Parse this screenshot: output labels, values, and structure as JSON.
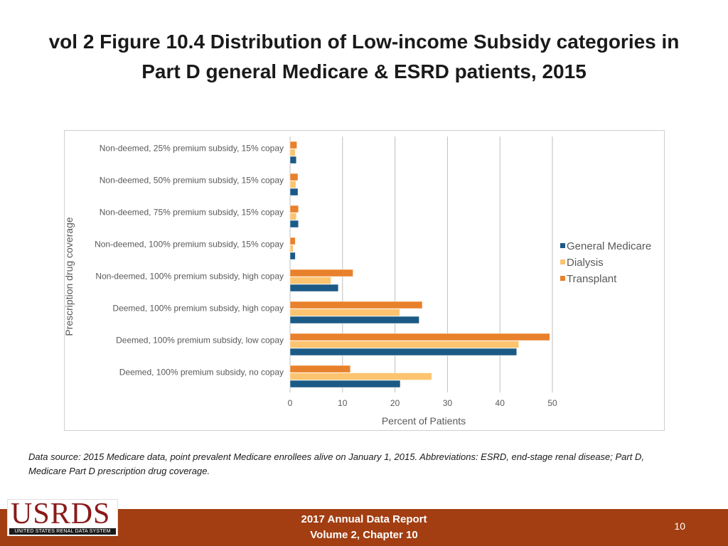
{
  "slide": {
    "title_line1": "vol 2 Figure 10.4 Distribution of Low-income Subsidy categories in",
    "title_line2": "Part D general Medicare & ESRD patients, 2015",
    "footnote": "Data source: 2015 Medicare data, point prevalent Medicare enrollees alive on January 1, 2015. Abbreviations: ESRD, end-stage renal disease; Part D, Medicare Part D prescription drug coverage."
  },
  "footer": {
    "report_line1": "2017 Annual Data Report",
    "report_line2": "Volume 2, Chapter 10",
    "page_number": "10",
    "logo_text": "USRDS",
    "logo_subtext": "UNITED STATES RENAL DATA SYSTEM",
    "bar_color": "#a23e12",
    "logo_color": "#8a1a1a"
  },
  "chart_data": {
    "type": "bar",
    "orientation": "horizontal",
    "title": "",
    "xlabel": "Percent of Patients",
    "ylabel": "Prescription drug coverage",
    "xlim": [
      0,
      50
    ],
    "xticks": [
      0,
      10,
      20,
      30,
      40,
      50
    ],
    "grid": "vertical",
    "legend_position": "right",
    "categories": [
      "Non-deemed, 25% premium subsidy, 15% copay",
      "Non-deemed, 50% premium subsidy, 15% copay",
      "Non-deemed, 75% premium subsidy, 15% copay",
      "Non-deemed, 100% premium subsidy, 15% copay",
      "Non-deemed, 100% premium subsidy, high copay",
      "Deemed, 100% premium subsidy, high copay",
      "Deemed, 100% premium subsidy, low copay",
      "Deemed, 100% premium subsidy, no copay"
    ],
    "series": [
      {
        "name": "Transplant",
        "color": "#e8812c",
        "values": [
          1.3,
          1.5,
          1.6,
          1.0,
          12.0,
          25.2,
          49.5,
          11.5
        ]
      },
      {
        "name": "Dialysis",
        "color": "#fcc470",
        "values": [
          1.0,
          1.1,
          1.2,
          0.6,
          7.8,
          20.9,
          43.6,
          27.0
        ]
      },
      {
        "name": "General Medicare",
        "color": "#1c5a86",
        "values": [
          1.2,
          1.5,
          1.6,
          1.0,
          9.2,
          24.6,
          43.2,
          21.0
        ]
      }
    ],
    "legend_order": [
      "General Medicare",
      "Dialysis",
      "Transplant"
    ]
  }
}
